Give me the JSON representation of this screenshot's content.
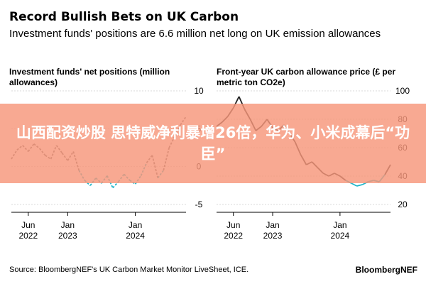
{
  "header": {
    "title": "Record Bullish Bets on UK Carbon",
    "subtitle": "Investment funds' positions are 6.6 million net long on UK emission allowances"
  },
  "overlay": {
    "text": "山西配资炒股 思特威净利暴增26倍，华为、小米成幕后“功臣”"
  },
  "footer": {
    "source": "Source: BloombergNEF's UK Carbon Market Monitor LiveSheet, ICE.",
    "brand": "BloombergNEF"
  },
  "colors": {
    "line": "#222222",
    "positive_series": "#6b6b6b",
    "negative_series": "#1fb5c9",
    "price_tail": "#1fb5c9",
    "overlay": "#f6967a"
  },
  "chart_data": [
    {
      "type": "line",
      "title": "Investment funds' net positions (million allowances)",
      "ylim": [
        -5,
        10
      ],
      "yticks": [
        "10",
        "5",
        "0",
        "-5"
      ],
      "xticks": [
        {
          "month": "Jun",
          "year": "2022"
        },
        {
          "month": "Jan",
          "year": "2023"
        },
        {
          "month": "Jan",
          "year": "2024"
        }
      ],
      "x_range": [
        "2022-03",
        "2024-10"
      ],
      "series": [
        {
          "x": [
            "2022-03",
            "2022-04",
            "2022-05",
            "2022-06",
            "2022-07",
            "2022-08",
            "2022-09",
            "2022-10",
            "2022-11",
            "2022-12",
            "2023-01",
            "2023-02",
            "2023-03",
            "2023-04",
            "2023-05",
            "2023-06",
            "2023-07",
            "2023-08",
            "2023-09",
            "2023-10",
            "2023-11",
            "2023-12",
            "2024-01",
            "2024-02",
            "2024-03",
            "2024-04",
            "2024-05",
            "2024-06",
            "2024-07",
            "2024-08",
            "2024-09",
            "2024-10"
          ],
          "values": [
            1.0,
            2.2,
            2.8,
            2.0,
            3.0,
            2.4,
            1.5,
            1.0,
            2.8,
            1.8,
            0.8,
            2.0,
            -0.5,
            -1.8,
            -2.5,
            -1.5,
            -2.2,
            -1.2,
            -2.8,
            -2.0,
            -1.0,
            -1.8,
            -2.3,
            -1.2,
            0.5,
            1.5,
            -1.5,
            -0.5,
            2.5,
            4.0,
            5.5,
            6.6
          ]
        }
      ]
    },
    {
      "type": "line",
      "title": "Front-year UK carbon allowance price (£ per metric ton CO2e)",
      "ylim": [
        20,
        100
      ],
      "yticks": [
        "100",
        "80",
        "60",
        "40",
        "20"
      ],
      "xticks": [
        {
          "month": "Jun",
          "year": "2022"
        },
        {
          "month": "Jan",
          "year": "2023"
        },
        {
          "month": "Jan",
          "year": "2024"
        }
      ],
      "x_range": [
        "2022-03",
        "2024-10"
      ],
      "series": [
        {
          "x": [
            "2022-03",
            "2022-04",
            "2022-05",
            "2022-06",
            "2022-07",
            "2022-08",
            "2022-09",
            "2022-10",
            "2022-11",
            "2022-12",
            "2023-01",
            "2023-02",
            "2023-03",
            "2023-04",
            "2023-05",
            "2023-06",
            "2023-07",
            "2023-08",
            "2023-09",
            "2023-10",
            "2023-11",
            "2023-12",
            "2024-01",
            "2024-02",
            "2024-03",
            "2024-04",
            "2024-05",
            "2024-06",
            "2024-07",
            "2024-08",
            "2024-09",
            "2024-10"
          ],
          "values": [
            75,
            78,
            82,
            88,
            96,
            87,
            80,
            72,
            75,
            80,
            74,
            72,
            76,
            70,
            64,
            55,
            48,
            50,
            46,
            42,
            40,
            42,
            40,
            37,
            35,
            33,
            34,
            36,
            37,
            36,
            41,
            48
          ]
        }
      ]
    }
  ]
}
